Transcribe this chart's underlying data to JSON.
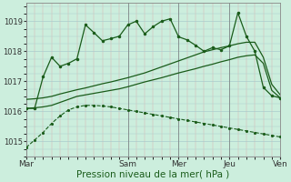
{
  "background_color": "#cceedd",
  "grid_color": "#aacccc",
  "minor_grid_color": "#ddaaaa",
  "line_color": "#1a5c1a",
  "xlabel": "Pression niveau de la mer( hPa )",
  "xlabel_fontsize": 7.5,
  "ylim": [
    1014.5,
    1019.6
  ],
  "yticks": [
    1015,
    1016,
    1017,
    1018,
    1019
  ],
  "xtick_labels": [
    "Mar",
    "Sam",
    "Mer",
    "Jeu",
    "Ven"
  ],
  "xtick_positions": [
    0,
    12,
    18,
    24,
    30
  ],
  "total_points": 31,
  "series_decline": [
    1014.8,
    1015.05,
    1015.3,
    1015.6,
    1015.85,
    1016.05,
    1016.15,
    1016.2,
    1016.2,
    1016.18,
    1016.15,
    1016.1,
    1016.05,
    1016.0,
    1015.95,
    1015.9,
    1015.85,
    1015.8,
    1015.75,
    1015.7,
    1015.65,
    1015.6,
    1015.55,
    1015.5,
    1015.45,
    1015.4,
    1015.35,
    1015.3,
    1015.25,
    1015.2,
    1015.15
  ],
  "series_low_trend": [
    1016.1,
    1016.12,
    1016.15,
    1016.2,
    1016.3,
    1016.4,
    1016.5,
    1016.55,
    1016.6,
    1016.65,
    1016.7,
    1016.75,
    1016.82,
    1016.9,
    1016.98,
    1017.05,
    1017.12,
    1017.2,
    1017.28,
    1017.35,
    1017.42,
    1017.5,
    1017.57,
    1017.65,
    1017.72,
    1017.8,
    1017.85,
    1017.88,
    1017.6,
    1016.7,
    1016.45
  ],
  "series_high_trend": [
    1016.4,
    1016.42,
    1016.45,
    1016.5,
    1016.58,
    1016.65,
    1016.72,
    1016.78,
    1016.85,
    1016.92,
    1016.98,
    1017.05,
    1017.12,
    1017.2,
    1017.28,
    1017.38,
    1017.48,
    1017.58,
    1017.68,
    1017.78,
    1017.88,
    1017.98,
    1018.05,
    1018.12,
    1018.18,
    1018.25,
    1018.3,
    1018.3,
    1017.8,
    1016.9,
    1016.55
  ],
  "series_main": [
    1016.1,
    1016.1,
    1017.15,
    1017.8,
    1017.5,
    1017.6,
    1017.75,
    1018.88,
    1018.62,
    1018.35,
    1018.42,
    1018.5,
    1018.88,
    1019.0,
    1018.58,
    1018.82,
    1019.0,
    1019.08,
    1018.48,
    1018.38,
    1018.2,
    1018.0,
    1018.12,
    1018.05,
    1018.18,
    1019.28,
    1018.5,
    1018.0,
    1016.8,
    1016.52,
    1016.45
  ]
}
